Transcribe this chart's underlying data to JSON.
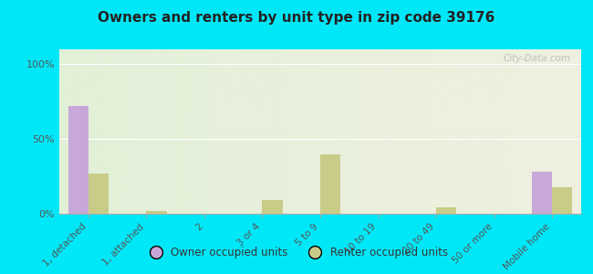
{
  "title": "Owners and renters by unit type in zip code 39176",
  "categories": [
    "1, detached",
    "1, attached",
    "2",
    "3 or 4",
    "5 to 9",
    "10 to 19",
    "20 to 49",
    "50 or more",
    "Mobile home"
  ],
  "owner_values": [
    72,
    0,
    0,
    0,
    0,
    0,
    0,
    0,
    28
  ],
  "renter_values": [
    27,
    2,
    0,
    9,
    40,
    0,
    4,
    0,
    18
  ],
  "owner_color": "#c8a8d8",
  "renter_color": "#c8cc88",
  "bg_outer": "#00e8f8",
  "bg_plot_top": "#e2f0d8",
  "bg_plot_bottom": "#f0f0e0",
  "yticks": [
    0,
    50,
    100
  ],
  "ylim": [
    0,
    110
  ],
  "ylabel_texts": [
    "0%",
    "50%",
    "100%"
  ],
  "watermark": "City-Data.com",
  "legend_owner": "Owner occupied units",
  "legend_renter": "Renter occupied units"
}
